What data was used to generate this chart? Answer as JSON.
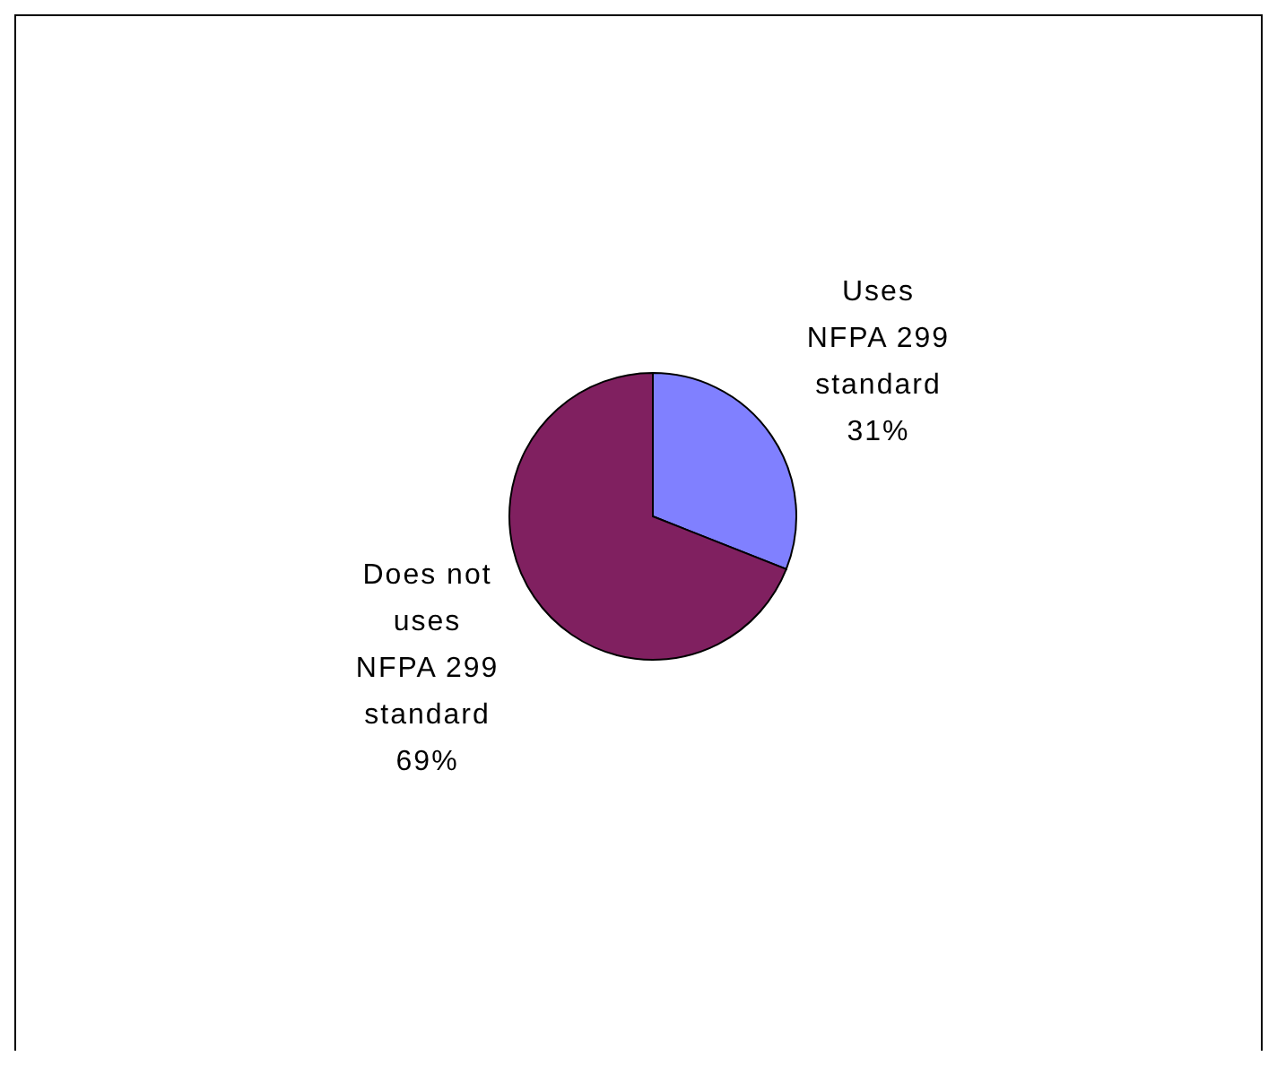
{
  "chart_data": {
    "type": "pie",
    "categories": [
      "Uses NFPA 299 standard",
      "Does not uses NFPA 299 standard"
    ],
    "values": [
      31,
      69
    ],
    "value_labels": [
      "31%",
      "69%"
    ],
    "colors": [
      "#8080ff",
      "#802060"
    ]
  }
}
